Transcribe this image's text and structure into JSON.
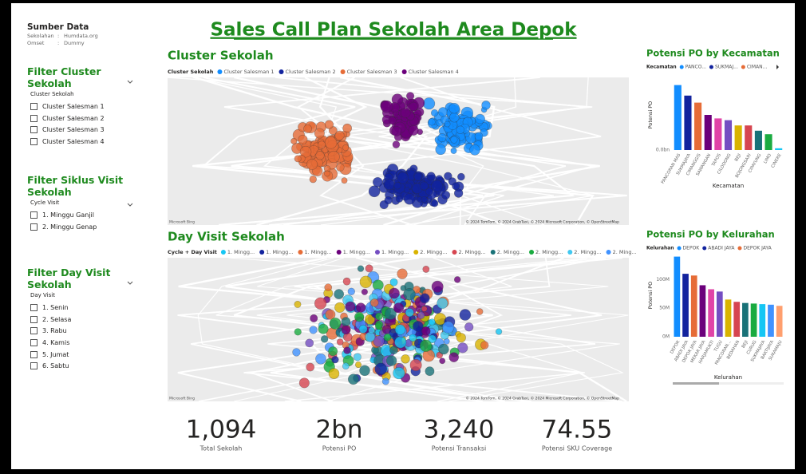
{
  "header": {
    "source_title": "Sumber Data",
    "source_rows": [
      [
        "Sekolahan",
        ":",
        "Humdata.org"
      ],
      [
        "Omset",
        ":",
        "Dummy"
      ]
    ],
    "title": "Sales Call Plan Sekolah Area Depok"
  },
  "filters": [
    {
      "title": "Filter Cluster Sekolah",
      "field": "Cluster Sekolah",
      "items": [
        "Cluster Salesman 1",
        "Cluster Salesman 2",
        "Cluster Salesman 3",
        "Cluster Salesman 4"
      ]
    },
    {
      "title": "Filter Siklus Visit Sekolah",
      "field": "Cycle Visit",
      "items": [
        "1. Minggu Ganjil",
        "2. Minggu Genap"
      ]
    },
    {
      "title": "Filter Day Visit Sekolah",
      "field": "Day Visit",
      "items": [
        "1. Senin",
        "2. Selasa",
        "3. Rabu",
        "4. Kamis",
        "5. Jumat",
        "6. Sabtu"
      ]
    }
  ],
  "maps": [
    {
      "title": "Cluster Sekolah",
      "legend_title": "Cluster Sekolah",
      "legend": [
        {
          "name": "Cluster Salesman 1",
          "color": "#118DFF"
        },
        {
          "name": "Cluster Salesman 2",
          "color": "#12239E"
        },
        {
          "name": "Cluster Salesman 3",
          "color": "#E66C37"
        },
        {
          "name": "Cluster Salesman 4",
          "color": "#6B007B"
        }
      ],
      "credit_left": "Microsoft Bing",
      "credit_right": "© 2024 TomTom, © 2024 GrabTaxi, © 2024 Microsoft Corporation, © OpenStreetMap"
    },
    {
      "title": "Day Visit Sekolah",
      "legend_title": "Cycle + Day Visit",
      "legend": [
        {
          "name": "1. Mingg...",
          "color": "#15C6F4"
        },
        {
          "name": "1. Mingg...",
          "color": "#12239E"
        },
        {
          "name": "1. Mingg...",
          "color": "#E66C37"
        },
        {
          "name": "1. Mingg...",
          "color": "#6B007B"
        },
        {
          "name": "1. Mingg...",
          "color": "#744EC2"
        },
        {
          "name": "2. Mingg...",
          "color": "#D9B300"
        },
        {
          "name": "2. Mingg...",
          "color": "#D64550"
        },
        {
          "name": "2. Mingg...",
          "color": "#197278"
        },
        {
          "name": "2. Mingg...",
          "color": "#1AAB40"
        },
        {
          "name": "2. Mingg...",
          "color": "#41C8F0"
        },
        {
          "name": "2. Ming...",
          "color": "#4092FF"
        }
      ],
      "credit_left": "Microsoft Bing",
      "credit_right": "© 2024 TomTom, © 2024 GrabTaxi, © 2024 Microsoft Corporation, © OpenStreetMap"
    }
  ],
  "kpis": [
    {
      "value": "1,094",
      "label": "Total Sekolah"
    },
    {
      "value": "2bn",
      "label": "Potensi PO"
    },
    {
      "value": "3,240",
      "label": "Potensi Transaksi"
    },
    {
      "value": "74.55",
      "label": "Potensi SKU Coverage"
    }
  ],
  "chart_data": [
    {
      "type": "bar",
      "title": "Potensi PO by Kecamatan",
      "legend_title": "Kecamatan",
      "legend": [
        "PANCO...",
        "SUKMAJ...",
        "CIMAN..."
      ],
      "categories": [
        "PANCORAN MAS",
        "SUKMAJAYA",
        "CIMANGGIS",
        "SAWANGAN",
        "TAPOS",
        "CILODONG",
        "BEJI",
        "BOJONGSARI",
        "CIPAYUNG",
        "LIMO",
        "CINERE"
      ],
      "values": [
        0.37,
        0.31,
        0.27,
        0.2,
        0.18,
        0.17,
        0.14,
        0.14,
        0.11,
        0.09,
        0.01
      ],
      "colors": [
        "#118DFF",
        "#12239E",
        "#E66C37",
        "#6B007B",
        "#E044A7",
        "#744EC2",
        "#D9B300",
        "#D64550",
        "#197278",
        "#1AAB40",
        "#15C6F4"
      ],
      "ylim": [
        0,
        0.4
      ],
      "yticks": [
        {
          "value": 0,
          "label": "0.0bn"
        }
      ],
      "ylabel": "Potensi PO",
      "xlabel": "Kecamatan"
    },
    {
      "type": "bar",
      "title": "Potensi PO by Kelurahan",
      "legend_title": "Kelurahan",
      "legend": [
        "DEPOK",
        "ABADI JAYA",
        "DEPOK JAYA"
      ],
      "categories": [
        "DEPOK",
        "ABADI JAYA",
        "DEPOK JAYA",
        "MEKAR JAYA",
        "HARJAMUKTI",
        "TUGU",
        "PANCORAN...",
        "BEDAHAN",
        "BEJI",
        "CURUG",
        "SUKMAJAYA",
        "BAKTIJAYA",
        "SUKAMAJU"
      ],
      "values": [
        140,
        110,
        107,
        90,
        83,
        79,
        65,
        61,
        59,
        58,
        57,
        56,
        54
      ],
      "colors": [
        "#118DFF",
        "#12239E",
        "#E66C37",
        "#6B007B",
        "#E044A7",
        "#744EC2",
        "#D9B300",
        "#D64550",
        "#197278",
        "#1AAB40",
        "#15C6F4",
        "#4092FF",
        "#FF9F6E"
      ],
      "ylim": [
        0,
        145
      ],
      "yticks": [
        {
          "value": 0,
          "label": "0M"
        },
        {
          "value": 50,
          "label": "50M"
        },
        {
          "value": 100,
          "label": "100M"
        }
      ],
      "ylabel": "Potensi PO",
      "xlabel": "Kelurahan"
    }
  ]
}
